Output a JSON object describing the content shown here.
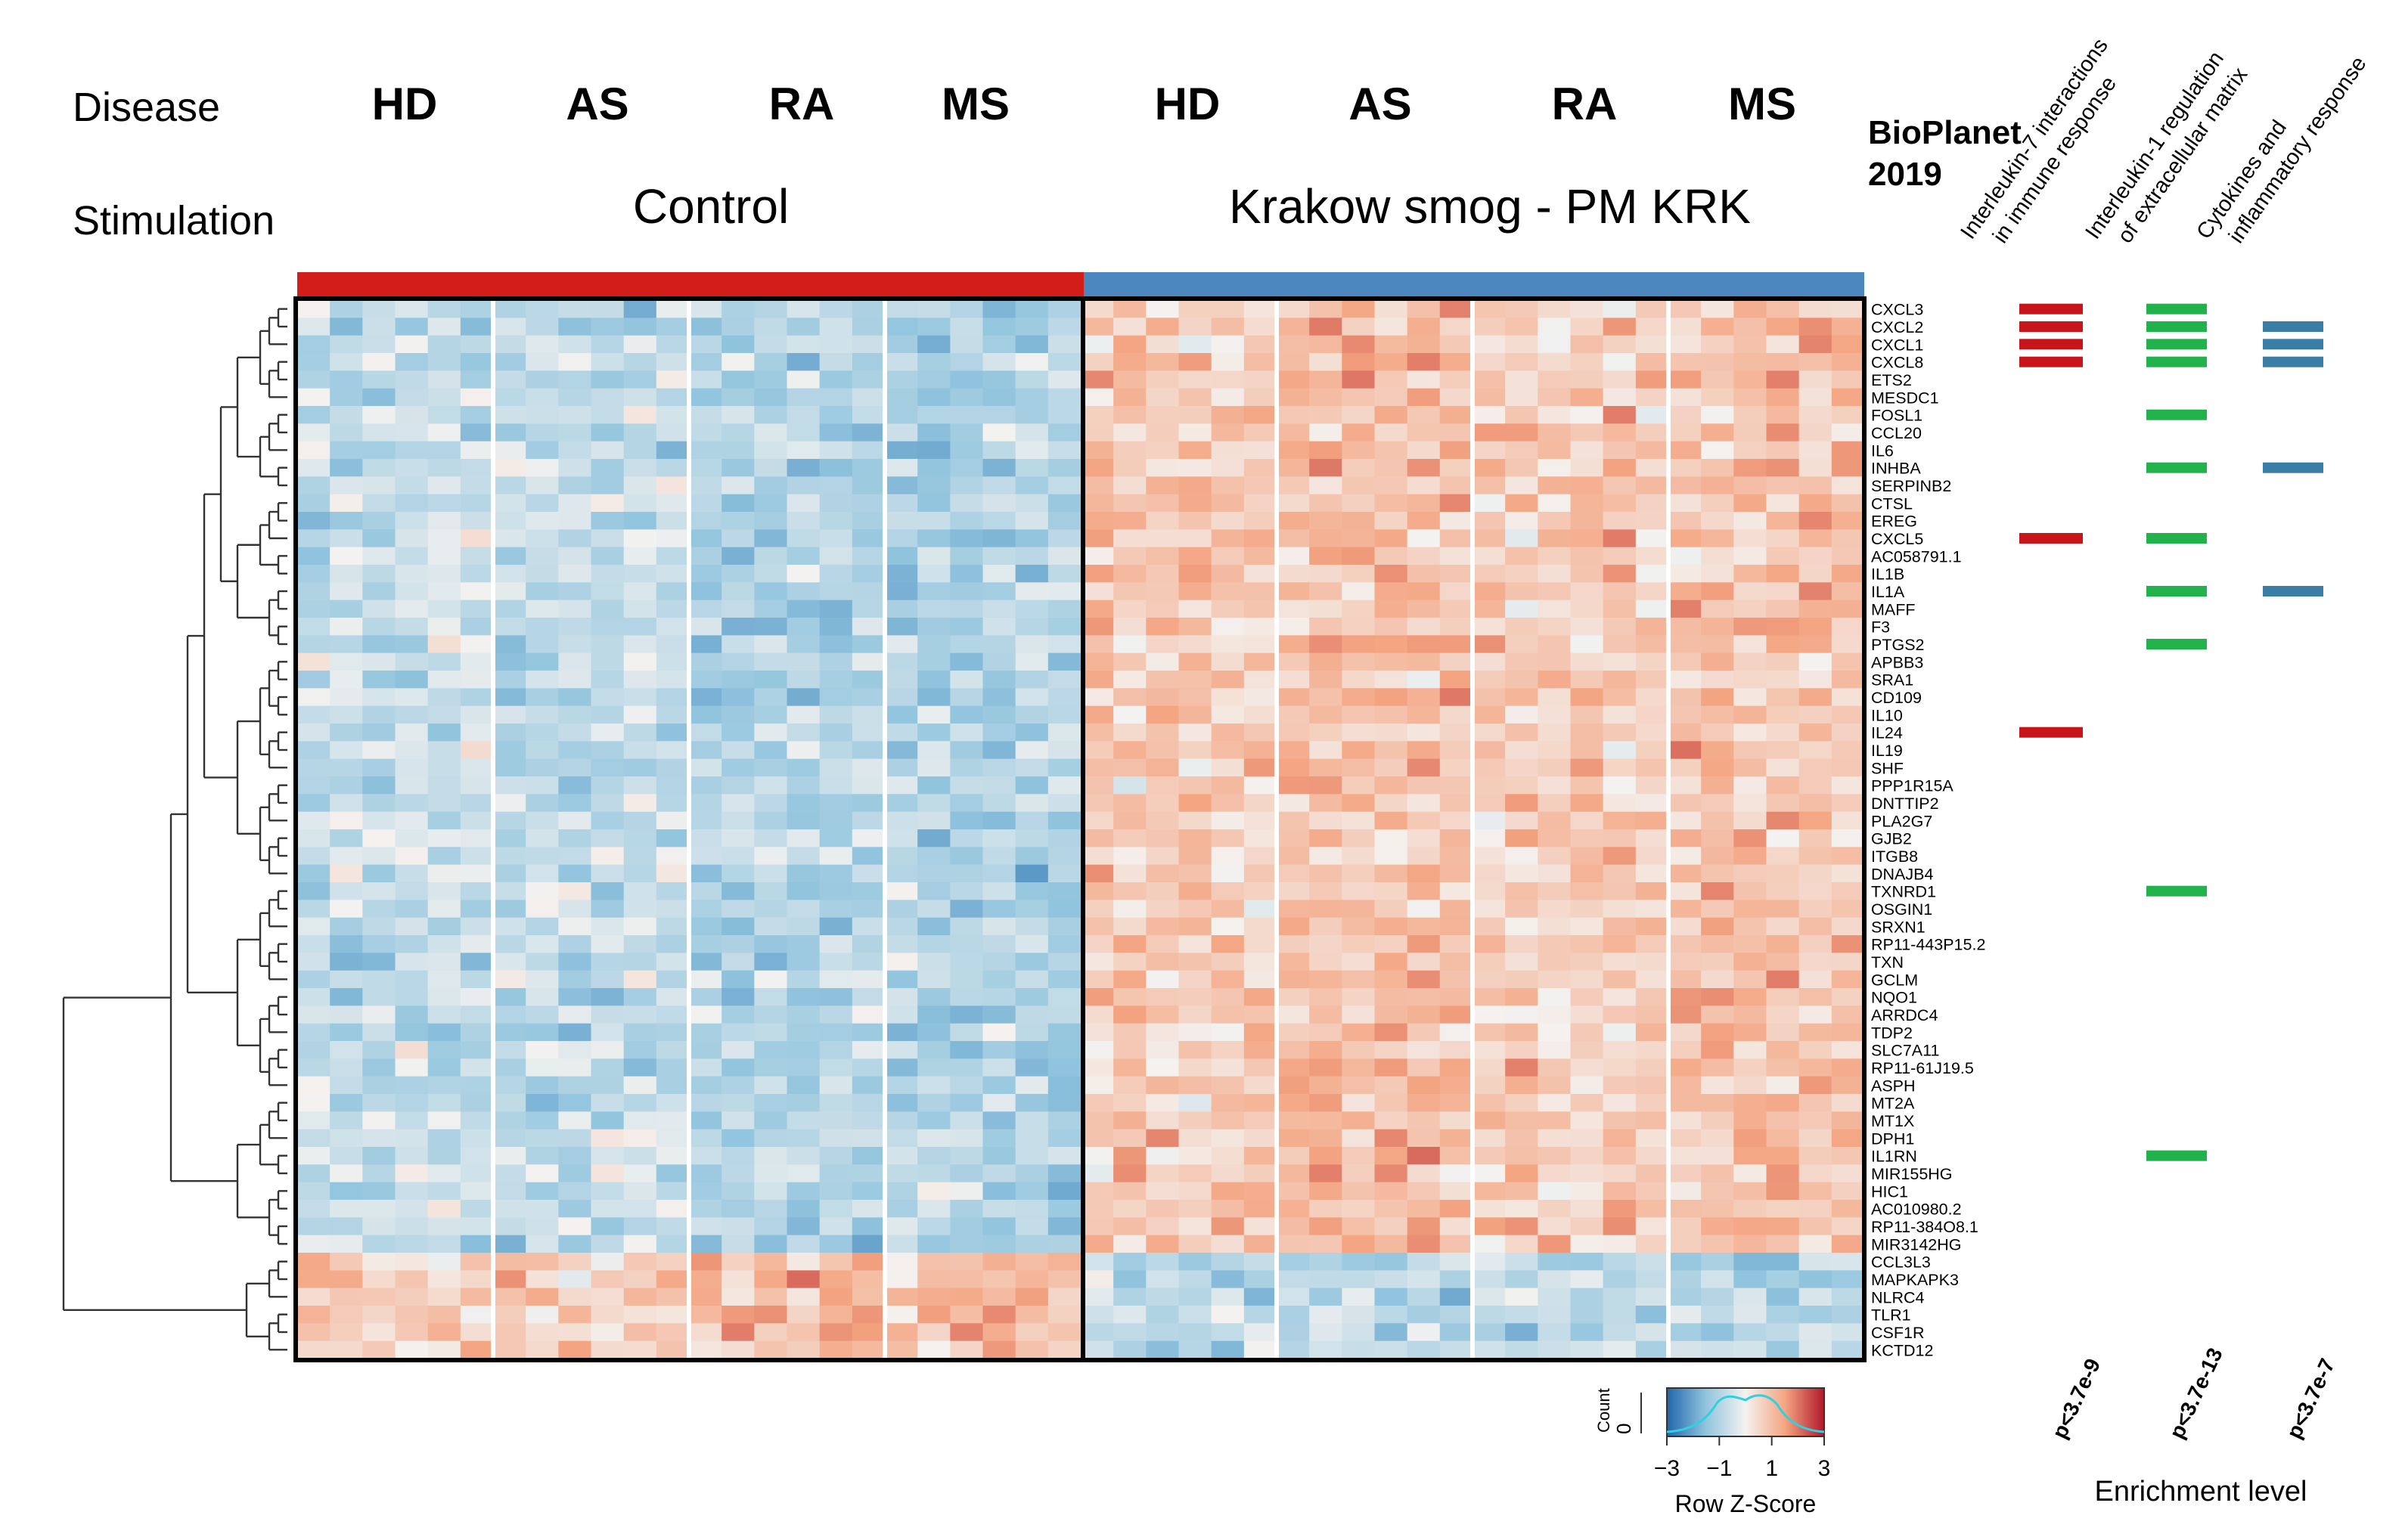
{
  "chart_data": {
    "type": "heatmap",
    "header": {
      "disease_label": "Disease",
      "stimulation_label": "Stimulation",
      "disease_groups": [
        "HD",
        "AS",
        "RA",
        "MS",
        "HD",
        "AS",
        "RA",
        "MS"
      ],
      "stimulations": [
        {
          "name": "Control",
          "color": "#d21d19"
        },
        {
          "name": "Krakow smog - PM KRK",
          "color": "#4b86bf"
        }
      ]
    },
    "group_sizes": [
      6,
      6,
      6,
      6,
      6,
      6,
      6,
      6
    ],
    "genes": [
      "CXCL3",
      "CXCL2",
      "CXCL1",
      "CXCL8",
      "ETS2",
      "MESDC1",
      "FOSL1",
      "CCL20",
      "IL6",
      "INHBA",
      "SERPINB2",
      "CTSL",
      "EREG",
      "CXCL5",
      "AC058791.1",
      "IL1B",
      "IL1A",
      "MAFF",
      "F3",
      "PTGS2",
      "APBB3",
      "SRA1",
      "CD109",
      "IL10",
      "IL24",
      "IL19",
      "SHF",
      "PPP1R15A",
      "DNTTIP2",
      "PLA2G7",
      "GJB2",
      "ITGB8",
      "DNAJB4",
      "TXNRD1",
      "OSGIN1",
      "SRXN1",
      "RP11-443P15.2",
      "TXN",
      "GCLM",
      "NQO1",
      "ARRDC4",
      "TDP2",
      "SLC7A11",
      "RP11-61J19.5",
      "ASPH",
      "MT2A",
      "MT1X",
      "DPH1",
      "IL1RN",
      "MIR155HG",
      "HIC1",
      "AC010980.2",
      "RP11-384O8.1",
      "MIR3142HG",
      "CCL3L3",
      "MAPKAPK3",
      "NLRC4",
      "TLR1",
      "CSF1R",
      "KCTD12"
    ],
    "reversed_rows": [
      "CCL3L3",
      "MAPKAPK3",
      "NLRC4",
      "TLR1",
      "CSF1R",
      "KCTD12"
    ],
    "color_scale": {
      "min": -3,
      "max": 3,
      "low": "#2166ac",
      "mid": "#f4f2f0",
      "high": "#b2182b"
    },
    "colorkey": {
      "title": "Row Z-Score",
      "count_label": "Count",
      "count_zero": "0",
      "ticks": [
        "-3",
        "-1",
        "1",
        "3"
      ]
    },
    "enrichment": {
      "database_title": [
        "BioPlanet",
        "2019"
      ],
      "pathways": [
        {
          "name": [
            "Interleukin-7 interactions",
            "in immune response"
          ],
          "color": "#c8151c",
          "pvalue": "p<3.7e-9",
          "genes": [
            "CXCL3",
            "CXCL2",
            "CXCL1",
            "CXCL8",
            "CXCL5",
            "IL24"
          ]
        },
        {
          "name": [
            "Interleukin-1 regulation",
            "of extracellular matrix"
          ],
          "color": "#22b24c",
          "pvalue": "p<3.7e-13",
          "genes": [
            "CXCL3",
            "CXCL2",
            "CXCL1",
            "CXCL8",
            "FOSL1",
            "INHBA",
            "CXCL5",
            "IL1A",
            "PTGS2",
            "TXNRD1",
            "IL1RN"
          ]
        },
        {
          "name": [
            "Cytokines and",
            "inflammatory response"
          ],
          "color": "#3a7ea6",
          "pvalue": "p<3.7e-7",
          "genes": [
            "CXCL2",
            "CXCL1",
            "CXCL8",
            "INHBA",
            "IL1A"
          ]
        }
      ],
      "axis_label": "Enrichment level"
    }
  }
}
